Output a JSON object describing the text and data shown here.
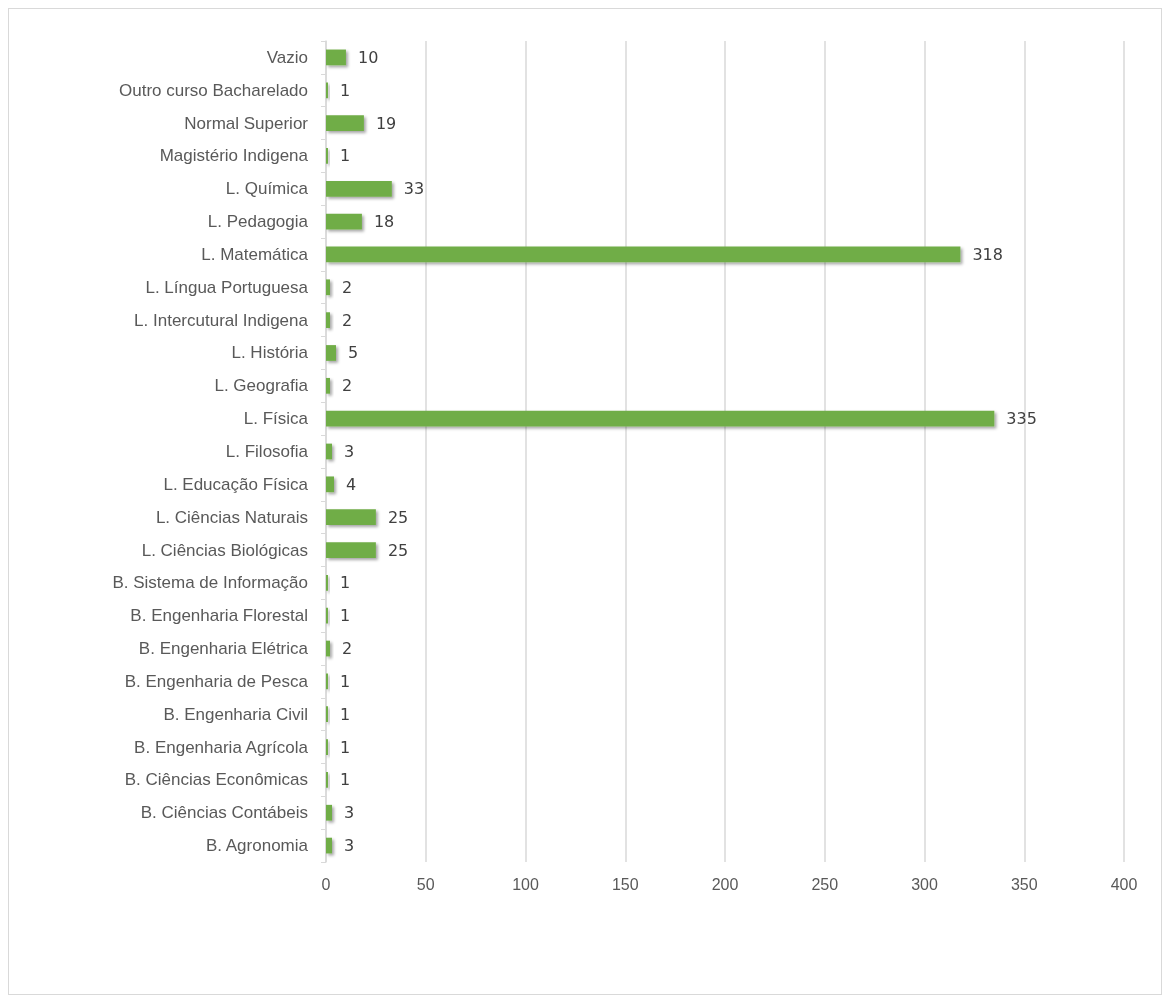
{
  "chart_data": {
    "type": "bar",
    "orientation": "horizontal",
    "categories": [
      "Vazio",
      "Outro curso Bacharelado",
      "Normal Superior",
      "Magistério Indigena",
      "L. Química",
      "L. Pedagogia",
      "L. Matemática",
      "L. Língua Portuguesa",
      "L. Intercutural Indigena",
      "L. História",
      "L. Geografia",
      "L. Física",
      "L. Filosofia",
      "L. Educação Física",
      "L. Ciências Naturais",
      "L. Ciências Biológicas",
      "B. Sistema de Informação",
      "B. Engenharia Florestal",
      "B. Engenharia Elétrica",
      "B. Engenharia de Pesca",
      "B. Engenharia Civil",
      "B. Engenharia Agrícola",
      "B. Ciências Econômicas",
      "B. Ciências Contábeis",
      "B. Agronomia"
    ],
    "values": [
      10,
      1,
      19,
      1,
      33,
      18,
      318,
      2,
      2,
      5,
      2,
      335,
      3,
      4,
      25,
      25,
      1,
      1,
      2,
      1,
      1,
      1,
      1,
      3,
      3
    ],
    "color": "#70ad47",
    "xlim": [
      0,
      400
    ],
    "xticks": [
      0,
      50,
      100,
      150,
      200,
      250,
      300,
      350,
      400
    ],
    "grid": "x",
    "data_labels": true
  }
}
